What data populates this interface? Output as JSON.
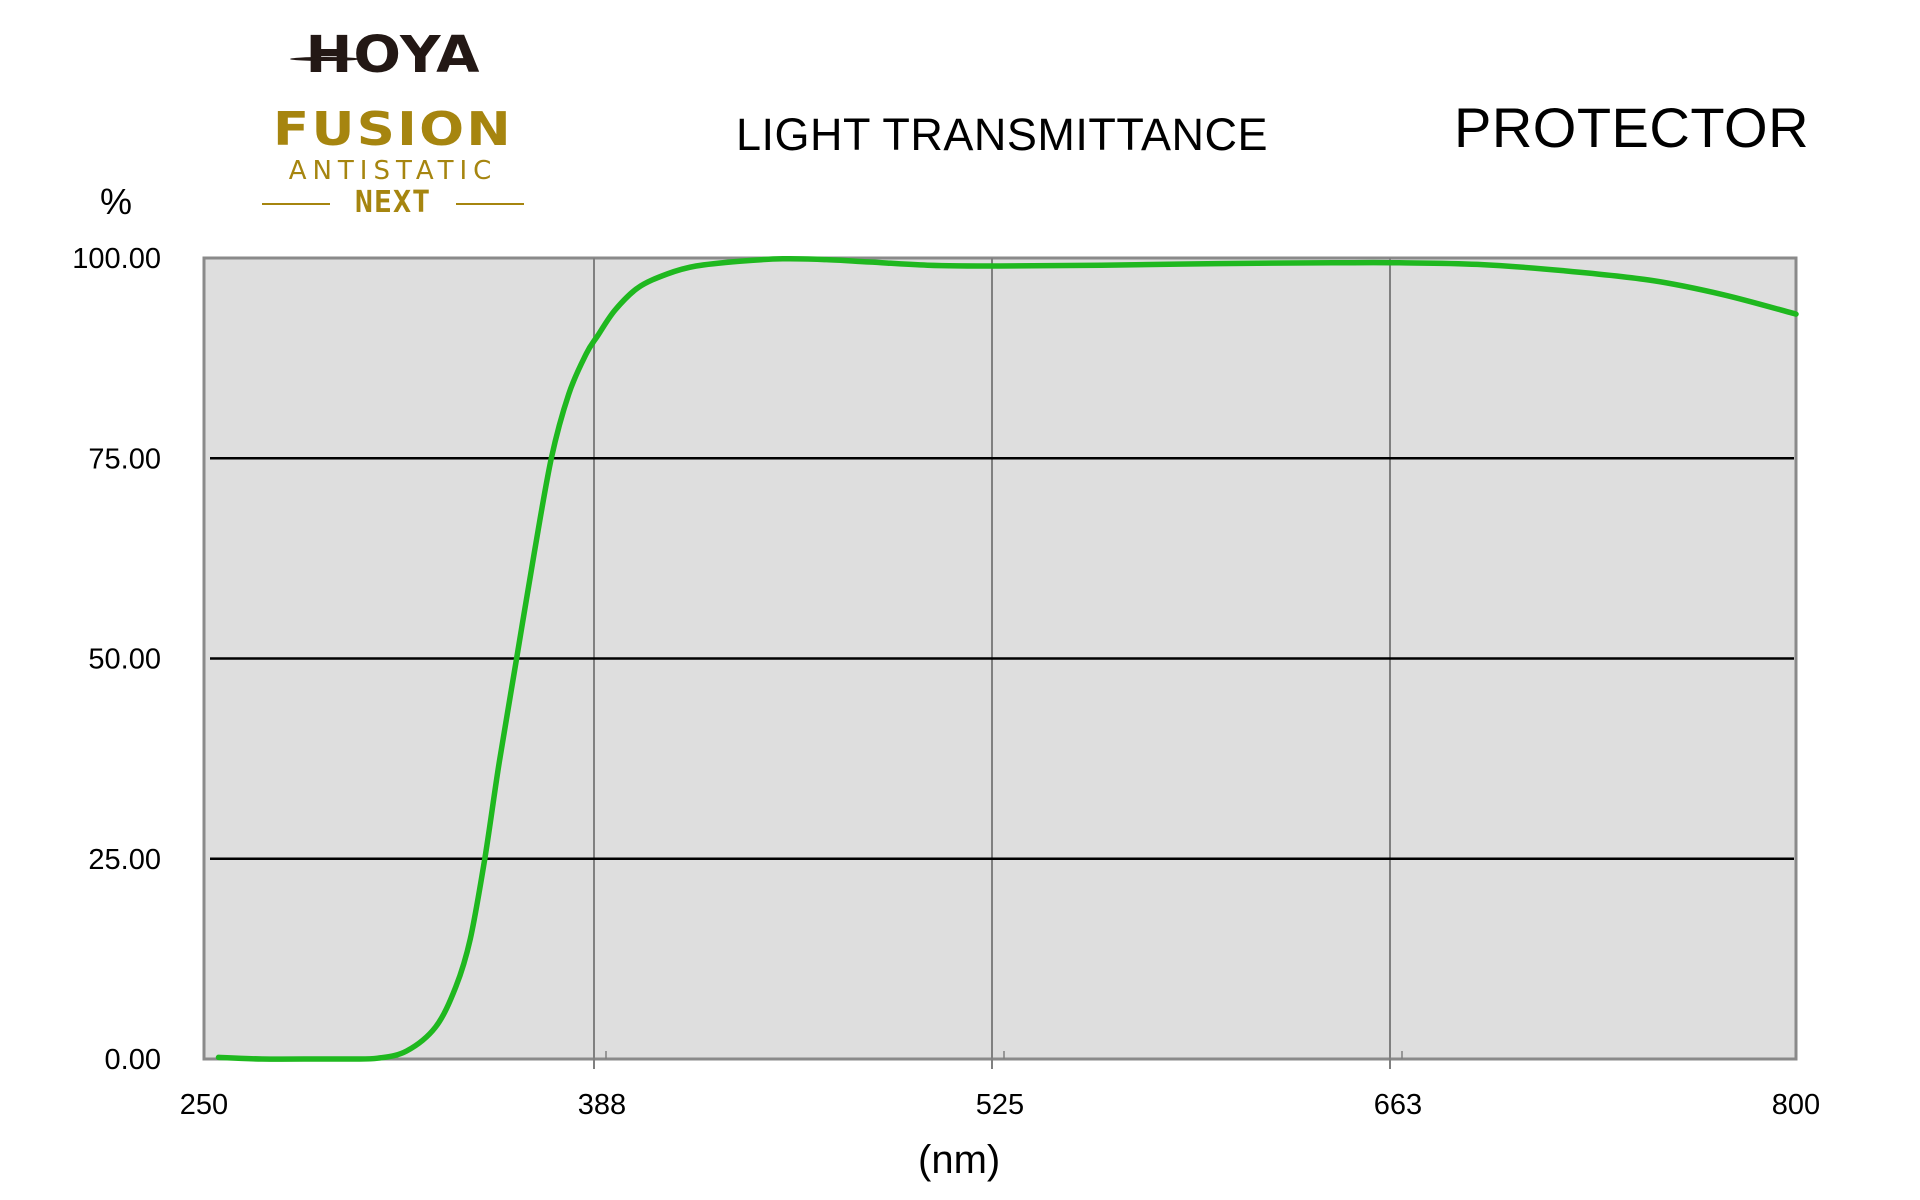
{
  "header": {
    "brand": "HOYA",
    "product_line": "FUSION",
    "sub_line": "ANTISTATIC",
    "edition": "NEXT",
    "chart_title": "LIGHT TRANSMITTANCE",
    "product": "PROTECTOR"
  },
  "colors": {
    "brand_gold": "#a6850f",
    "plot_bg": "#dedede",
    "series": "#1fb81f",
    "h_grid": "#000000",
    "v_grid": "#808080"
  },
  "chart_data": {
    "type": "line",
    "title": "LIGHT TRANSMITTANCE",
    "subtitle": "PROTECTOR",
    "xlabel": "(nm)",
    "ylabel": "%",
    "xlim": [
      250,
      800
    ],
    "ylim": [
      0,
      100
    ],
    "x_ticks": [
      "250",
      "388",
      "525",
      "663",
      "800"
    ],
    "y_ticks": [
      "0.00",
      "25.00",
      "50.00",
      "75.00",
      "100.00"
    ],
    "grid": true,
    "legend": "none",
    "series": [
      {
        "name": "Transmittance",
        "x": [
          255,
          270,
          290,
          300,
          310,
          320,
          330,
          337,
          342,
          347,
          352,
          358,
          364,
          370,
          376,
          382,
          386,
          392,
          400,
          410,
          420,
          435,
          450,
          465,
          480,
          500,
          525,
          560,
          600,
          640,
          663,
          690,
          720,
          750,
          775,
          800
        ],
        "y": [
          0.2,
          0.0,
          0.0,
          0.0,
          0.1,
          1.0,
          4.0,
          9.0,
          15.0,
          25.0,
          37.0,
          50.0,
          63.0,
          75.0,
          83.0,
          88.0,
          90.3,
          93.5,
          96.3,
          98.0,
          99.0,
          99.6,
          99.9,
          99.8,
          99.5,
          99.1,
          99.0,
          99.1,
          99.3,
          99.4,
          99.4,
          99.2,
          98.4,
          97.2,
          95.4,
          93.0
        ]
      }
    ]
  }
}
